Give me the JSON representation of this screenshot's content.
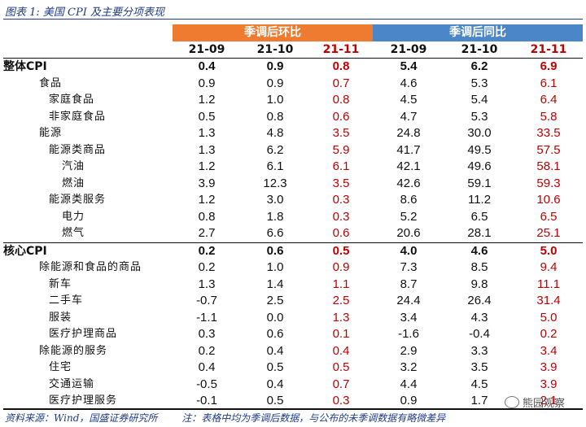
{
  "caption": "图表 1: 美国 CPI 及主要分项表现",
  "table": {
    "group_headers": [
      "季调后环比",
      "季调后同比"
    ],
    "months": [
      "21-09",
      "21-10",
      "21-11",
      "21-09",
      "21-10",
      "21-11"
    ],
    "rows": [
      {
        "label": "整体CPI",
        "level": 0,
        "bold": true,
        "values": [
          "0.4",
          "0.9",
          "0.8",
          "5.4",
          "6.2",
          "6.9"
        ]
      },
      {
        "label": "食品",
        "level": 1,
        "values": [
          "0.9",
          "0.9",
          "0.7",
          "4.6",
          "5.3",
          "6.1"
        ]
      },
      {
        "label": "家庭食品",
        "level": 2,
        "values": [
          "1.2",
          "1.0",
          "0.8",
          "4.5",
          "5.4",
          "6.4"
        ]
      },
      {
        "label": "非家庭食品",
        "level": 2,
        "values": [
          "0.5",
          "0.8",
          "0.6",
          "4.7",
          "5.3",
          "5.8"
        ]
      },
      {
        "label": "能源",
        "level": 1,
        "values": [
          "1.3",
          "4.8",
          "3.5",
          "24.8",
          "30.0",
          "33.5"
        ]
      },
      {
        "label": "能源类商品",
        "level": 2,
        "values": [
          "1.3",
          "6.2",
          "5.9",
          "41.7",
          "49.5",
          "57.5"
        ]
      },
      {
        "label": "汽油",
        "level": 3,
        "values": [
          "1.2",
          "6.1",
          "6.1",
          "42.1",
          "49.6",
          "58.1"
        ]
      },
      {
        "label": "燃油",
        "level": 3,
        "values": [
          "3.9",
          "12.3",
          "3.5",
          "42.6",
          "59.1",
          "59.3"
        ]
      },
      {
        "label": "能源类服务",
        "level": 2,
        "values": [
          "1.2",
          "3.0",
          "0.3",
          "8.6",
          "11.2",
          "10.6"
        ]
      },
      {
        "label": "电力",
        "level": 3,
        "values": [
          "0.8",
          "1.8",
          "0.3",
          "5.2",
          "6.5",
          "6.5"
        ]
      },
      {
        "label": "燃气",
        "level": 3,
        "values": [
          "2.7",
          "6.6",
          "0.6",
          "20.6",
          "28.1",
          "25.1"
        ]
      },
      {
        "label": "核心CPI",
        "level": 0,
        "bold": true,
        "values": [
          "0.2",
          "0.6",
          "0.5",
          "4.0",
          "4.6",
          "5.0"
        ]
      },
      {
        "label": "除能源和食品的商品",
        "level": 1,
        "values": [
          "0.2",
          "1.0",
          "0.9",
          "7.3",
          "8.5",
          "9.4"
        ]
      },
      {
        "label": "新车",
        "level": 2,
        "values": [
          "1.3",
          "1.4",
          "1.1",
          "8.7",
          "9.8",
          "11.1"
        ]
      },
      {
        "label": "二手车",
        "level": 2,
        "values": [
          "-0.7",
          "2.5",
          "2.5",
          "24.4",
          "26.4",
          "31.4"
        ]
      },
      {
        "label": "服装",
        "level": 2,
        "values": [
          "-1.1",
          "0.0",
          "1.3",
          "3.4",
          "4.3",
          "5.0"
        ]
      },
      {
        "label": "医疗护理商品",
        "level": 2,
        "values": [
          "0.3",
          "0.6",
          "0.1",
          "-1.6",
          "-0.4",
          "0.2"
        ]
      },
      {
        "label": "除能源的服务",
        "level": 1,
        "values": [
          "0.2",
          "0.4",
          "0.4",
          "2.9",
          "3.3",
          "3.4"
        ]
      },
      {
        "label": "住宅",
        "level": 2,
        "values": [
          "0.4",
          "0.5",
          "0.5",
          "3.2",
          "3.5",
          "3.9"
        ]
      },
      {
        "label": "交通运输",
        "level": 2,
        "values": [
          "-0.5",
          "0.4",
          "0.7",
          "4.4",
          "4.5",
          "3.9"
        ]
      },
      {
        "label": "医疗护理服务",
        "level": 2,
        "values": [
          "-0.1",
          "0.5",
          "0.3",
          "0.9",
          "1.7",
          "2.1"
        ]
      }
    ]
  },
  "footer": {
    "source": "资料来源：Wind，国盛证券研究所",
    "note": "注：表格中均为季调后数据，与公布的未季调数据有略微差异"
  },
  "watermark": "熊园观察",
  "colors": {
    "highlight": "#c00000",
    "orange_header": "#ee7b30",
    "blue_header": "#4a86c8"
  }
}
